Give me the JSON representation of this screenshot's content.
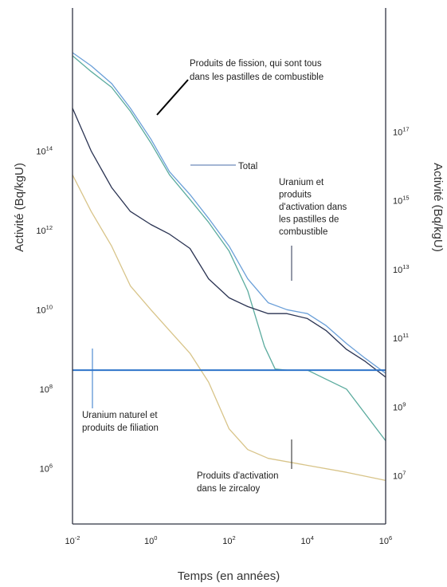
{
  "chart_data": {
    "type": "line",
    "title": "",
    "xlabel": "Temps (en années)",
    "ylabel_left": "Activité (Bq/kgU)",
    "ylabel_right": "Activité (Bq/kgU)",
    "x_scale": "log",
    "y_scale": "log",
    "xlim": [
      0.01,
      1000000
    ],
    "ylim_left": [
      40000,
      400000000000000000
    ],
    "ylim_right": [
      400000,
      400000000000000000000
    ],
    "x_ticks": [
      {
        "value": 0.01,
        "mant": "10",
        "exp": "-2"
      },
      {
        "value": 1,
        "mant": "10",
        "exp": "0"
      },
      {
        "value": 100,
        "mant": "10",
        "exp": "2"
      },
      {
        "value": 10000,
        "mant": "10",
        "exp": "4"
      },
      {
        "value": 1000000,
        "mant": "10",
        "exp": "6"
      }
    ],
    "y_ticks_left": [
      {
        "value": 1000000,
        "mant": "10",
        "exp": "6"
      },
      {
        "value": 100000000,
        "mant": "10",
        "exp": "8"
      },
      {
        "value": 10000000000,
        "mant": "10",
        "exp": "10"
      },
      {
        "value": 1000000000000,
        "mant": "10",
        "exp": "12"
      },
      {
        "value": 100000000000000,
        "mant": "10",
        "exp": "14"
      }
    ],
    "y_ticks_right": [
      {
        "value": 10000000,
        "mant": "10",
        "exp": "7"
      },
      {
        "value": 1000000000,
        "mant": "10",
        "exp": "9"
      },
      {
        "value": 100000000000,
        "mant": "10",
        "exp": "11"
      },
      {
        "value": 10000000000000,
        "mant": "10",
        "exp": "13"
      },
      {
        "value": 1000000000000000,
        "mant": "10",
        "exp": "15"
      },
      {
        "value": 100000000000000000,
        "mant": "10",
        "exp": "17"
      }
    ],
    "series": [
      {
        "name": "Total",
        "color": "#6a9fd8",
        "points": [
          [
            0.01,
            3e+16
          ],
          [
            0.03,
            1.4e+16
          ],
          [
            0.1,
            5000000000000000.0
          ],
          [
            0.3,
            1200000000000000.0
          ],
          [
            1,
            200000000000000.0
          ],
          [
            3,
            30000000000000.0
          ],
          [
            10,
            8000000000000.0
          ],
          [
            30,
            2000000000000.0
          ],
          [
            100,
            400000000000.0
          ],
          [
            300,
            60000000000.0
          ],
          [
            1000,
            15000000000.0
          ],
          [
            3000,
            10000000000.0
          ],
          [
            10000,
            8000000000.0
          ],
          [
            30000,
            4000000000.0
          ],
          [
            100000,
            1400000000.0
          ],
          [
            300000,
            600000000.0
          ],
          [
            1000000,
            250000000.0
          ]
        ]
      },
      {
        "name": "Produits de fission, qui sont tous dans les pastilles de combustible",
        "color": "#5bab9e",
        "points": [
          [
            0.01,
            2.5e+16
          ],
          [
            0.03,
            1e+16
          ],
          [
            0.1,
            4000000000000000.0
          ],
          [
            0.3,
            1000000000000000.0
          ],
          [
            1,
            160000000000000.0
          ],
          [
            3,
            25000000000000.0
          ],
          [
            10,
            6000000000000.0
          ],
          [
            30,
            1600000000000.0
          ],
          [
            100,
            300000000000.0
          ],
          [
            300,
            30000000000.0
          ],
          [
            800,
            1200000000.0
          ],
          [
            1500,
            320000000.0
          ],
          [
            3000,
            300000000.0
          ],
          [
            10000,
            300000000.0
          ],
          [
            100000,
            100000000.0
          ],
          [
            1000000,
            5000000.0
          ]
        ]
      },
      {
        "name": "Uranium et produits d'activation dans les pastilles de combustible",
        "color": "#2a3352",
        "points": [
          [
            0.01,
            1200000000000000.0
          ],
          [
            0.03,
            100000000000000.0
          ],
          [
            0.1,
            12000000000000.0
          ],
          [
            0.3,
            3000000000000.0
          ],
          [
            1,
            1400000000000.0
          ],
          [
            3,
            800000000000.0
          ],
          [
            10,
            350000000000.0
          ],
          [
            30,
            60000000000.0
          ],
          [
            100,
            20000000000.0
          ],
          [
            300,
            12000000000.0
          ],
          [
            1000,
            8000000000.0
          ],
          [
            3000,
            8000000000.0
          ],
          [
            10000,
            6000000000.0
          ],
          [
            30000,
            3000000000.0
          ],
          [
            100000,
            1000000000.0
          ],
          [
            300000,
            500000000.0
          ],
          [
            1000000,
            200000000.0
          ]
        ]
      },
      {
        "name": "Produits d'activation dans le zircaloy",
        "color": "#d8c489",
        "points": [
          [
            0.01,
            25000000000000.0
          ],
          [
            0.03,
            3000000000000.0
          ],
          [
            0.1,
            400000000000.0
          ],
          [
            0.3,
            40000000000.0
          ],
          [
            1,
            10000000000.0
          ],
          [
            3,
            3000000000.0
          ],
          [
            10,
            800000000.0
          ],
          [
            30,
            150000000.0
          ],
          [
            100,
            10000000.0
          ],
          [
            300,
            3000000.0
          ],
          [
            1000,
            1800000.0
          ],
          [
            10000,
            1200000.0
          ],
          [
            100000,
            800000.0
          ],
          [
            1000000,
            500000.0
          ]
        ]
      },
      {
        "name": "Uranium naturel et produits de filiation",
        "color": "#2e74c9",
        "points": [
          [
            0.01,
            300000000.0
          ],
          [
            1000000,
            300000000.0
          ]
        ]
      }
    ],
    "annotations": [
      {
        "id": "fission",
        "lines": [
          "Produits de fission, qui sont tous",
          "dans les pastilles de combustible"
        ]
      },
      {
        "id": "total",
        "lines": [
          "Total"
        ]
      },
      {
        "id": "uranium",
        "lines": [
          "Uranium et",
          "produits",
          "d'activation dans",
          "les pastilles de",
          "combustible"
        ]
      },
      {
        "id": "natural",
        "lines": [
          "Uranium naturel et",
          "produits de filiation"
        ]
      },
      {
        "id": "zircaloy",
        "lines": [
          "Produits d'activation",
          "dans le zircaloy"
        ]
      }
    ]
  }
}
